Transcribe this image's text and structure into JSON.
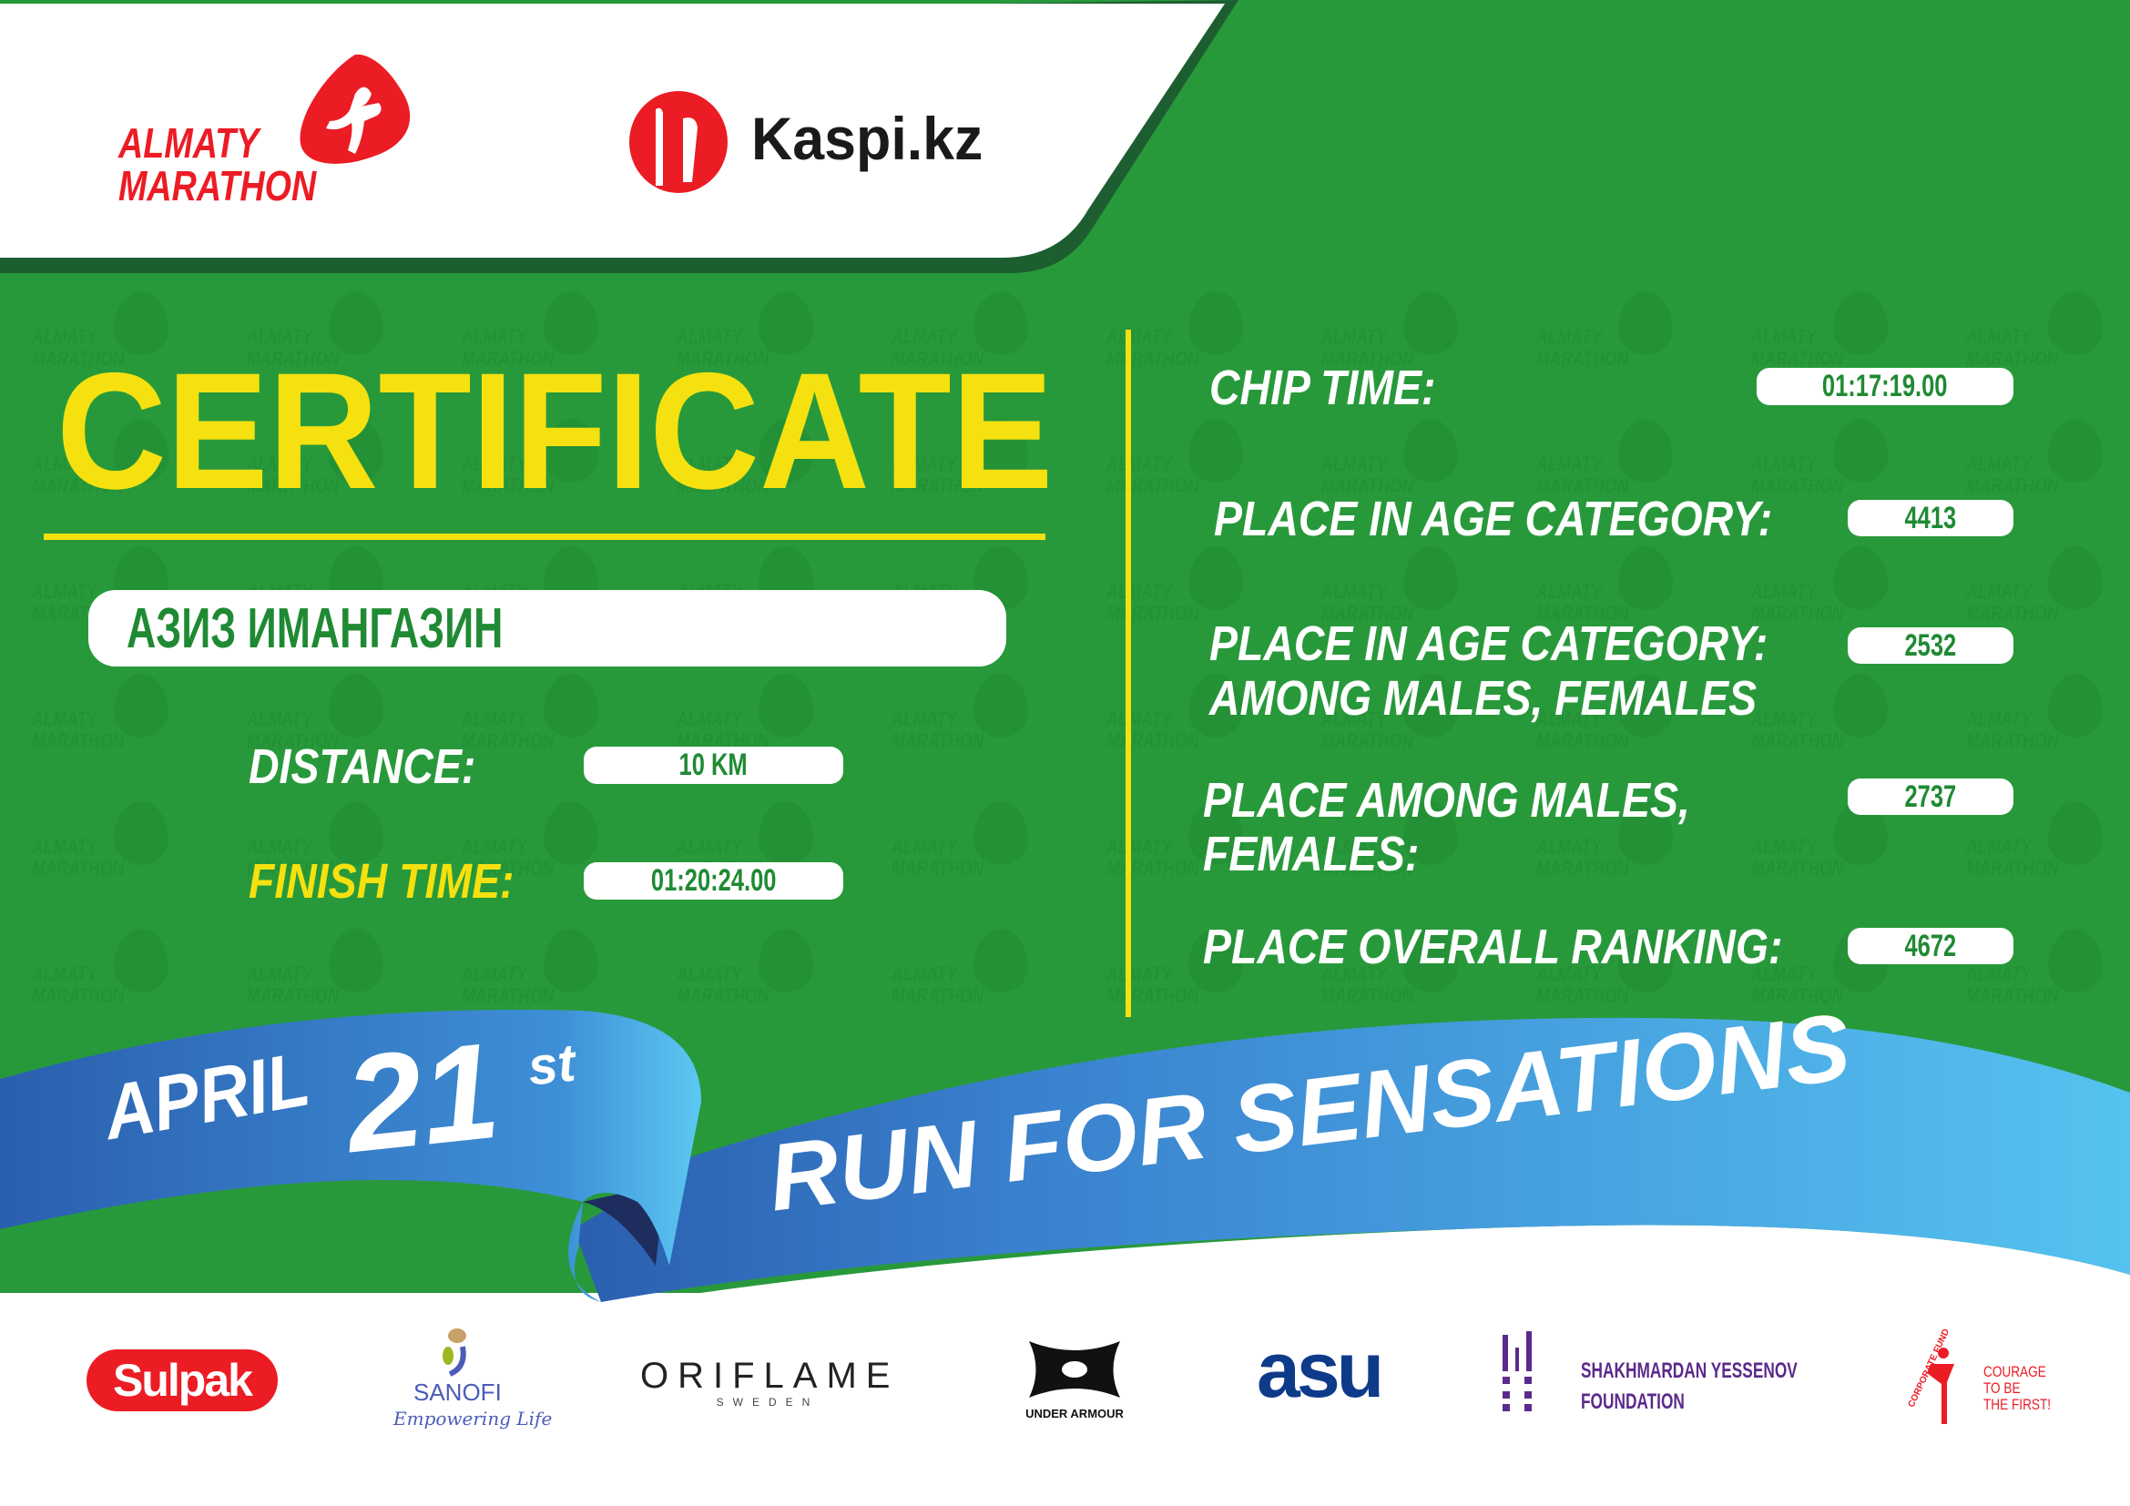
{
  "header": {
    "logo_line1": "ALMATY",
    "logo_line2": "MARATHON",
    "sponsor": "Kaspi.kz",
    "watermark_line1": "ALMATY",
    "watermark_line2": "MARATHON"
  },
  "certificate": {
    "title": "CERTIFICATE",
    "name": "АЗИЗ ИМАНГАЗИН",
    "distance_label": "DISTANCE:",
    "distance_value": "10 KM",
    "finish_label": "FINISH TIME:",
    "finish_value": "01:20:24.00"
  },
  "results": [
    {
      "label_lines": [
        "CHIP TIME:"
      ],
      "value": "01:17:19.00"
    },
    {
      "label_lines": [
        "PLACE IN AGE CATEGORY:"
      ],
      "value": "4413"
    },
    {
      "label_lines": [
        "PLACE IN AGE CATEGORY:",
        "AMONG MALES, FEMALES"
      ],
      "value": "2532"
    },
    {
      "label_lines": [
        "PLACE AMONG MALES,",
        "FEMALES:"
      ],
      "value": "2737"
    },
    {
      "label_lines": [
        "PLACE OVERALL RANKING:"
      ],
      "value": "4672"
    }
  ],
  "ribbon": {
    "month": "APRIL",
    "day": "21",
    "suffix": "st",
    "slogan": "RUN FOR SENSATIONS"
  },
  "partners": {
    "sulpak": "Sulpak",
    "sanofi": "SANOFI",
    "sanofi_tagline": "Empowering Life",
    "oriflame": "ORIFLAME",
    "oriflame_sub": "SWEDEN",
    "under_armour": "UNDER ARMOUR",
    "asu": "asu",
    "yessenov_line1": "SHAKHMARDAN YESSENOV",
    "yessenov_line2": "FOUNDATION",
    "courage_arc": "CORPORATE FUND",
    "courage_lines": [
      "COURAGE",
      "TO BE",
      "THE FIRST!"
    ]
  },
  "colors": {
    "green": "#28993b",
    "dark_green": "#1d5e31",
    "yellow": "#f5e10f",
    "red": "#ec1c24",
    "ribbon_blue": "#3a82cf",
    "ribbon_light": "#55c3f0"
  }
}
